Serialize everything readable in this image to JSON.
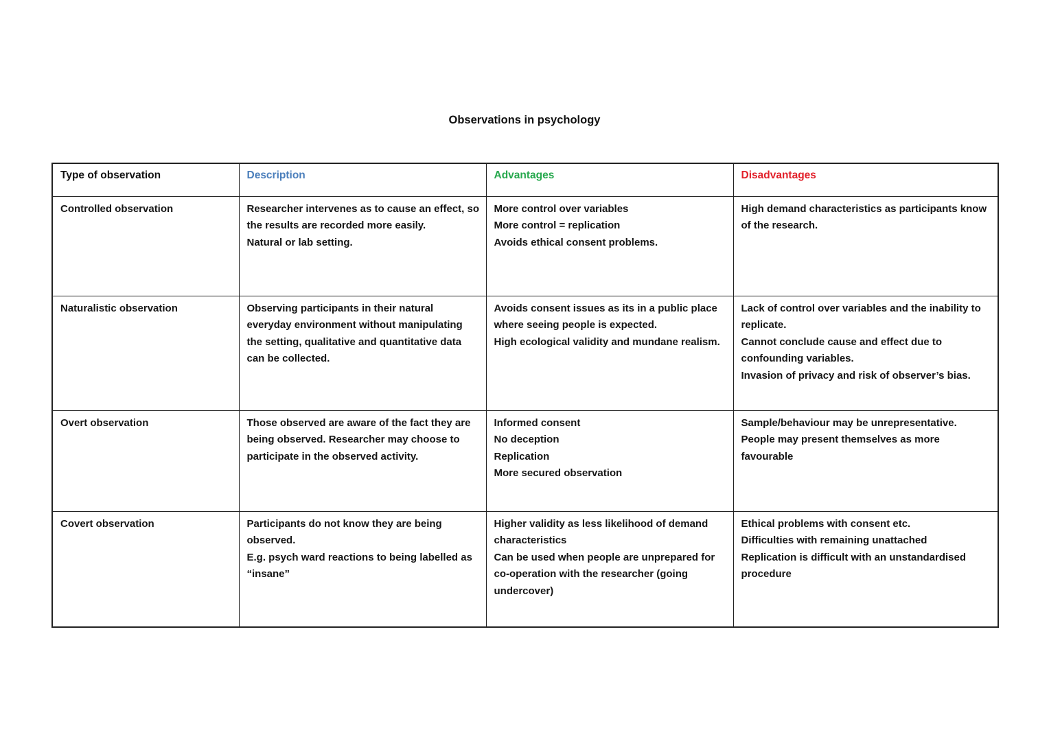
{
  "page": {
    "title": "Observations in psychology"
  },
  "table": {
    "headers": [
      {
        "label": "Type of observation",
        "color": "#111111"
      },
      {
        "label": "Description",
        "color": "#4A7EBB"
      },
      {
        "label": "Advantages",
        "color": "#26A84D"
      },
      {
        "label": "Disadvantages",
        "color": "#E2202A"
      }
    ],
    "rows": [
      {
        "type": "Controlled observation",
        "description": "Researcher intervenes as to cause an effect, so the results are recorded more easily.\nNatural or lab setting.",
        "advantages": "More control over variables\nMore control = replication\nAvoids ethical consent problems.",
        "disadvantages": "High demand characteristics as participants know of the research."
      },
      {
        "type": "Naturalistic observation",
        "description": "Observing participants in their natural everyday environment without manipulating the setting, qualitative and quantitative data can be collected.",
        "advantages": "Avoids consent issues as its in a public place where seeing people is expected.\nHigh ecological validity and mundane realism.",
        "disadvantages": "Lack of control over variables and the inability to replicate.\nCannot conclude cause and effect due to confounding variables.\nInvasion of privacy and risk of observer’s bias."
      },
      {
        "type": "Overt observation",
        "description": "Those observed are aware of the fact they are being observed. Researcher may choose to participate in the observed activity.",
        "advantages": "Informed consent\nNo deception\nReplication\nMore secured observation",
        "disadvantages": "Sample/behaviour may be unrepresentative.\nPeople may present themselves as more favourable"
      },
      {
        "type": "Covert observation",
        "description": "Participants do not know they are being observed.\nE.g. psych ward reactions to being labelled as “insane”",
        "advantages": "Higher validity as less likelihood of demand characteristics\nCan be used when people are unprepared for co-operation with the researcher (going undercover)",
        "disadvantages": "Ethical problems with consent etc.\nDifficulties with remaining unattached\nReplication is difficult with an unstandardised procedure"
      }
    ]
  }
}
